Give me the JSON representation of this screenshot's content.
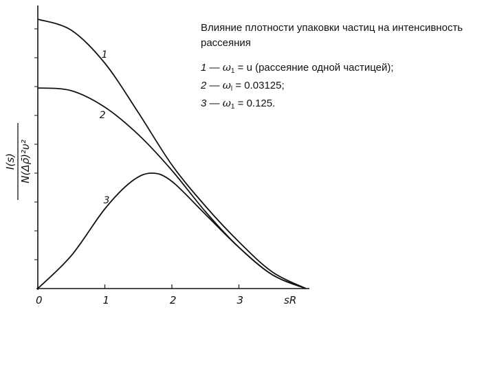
{
  "caption": {
    "title": "Влияние плотности упаковки частиц на интенсивность рассеяния"
  },
  "legend": [
    {
      "num": "1 —",
      "symbol": "ω",
      "sub": "1",
      "text": " = u (рассеяние  одной  частицей);"
    },
    {
      "num": "2 —",
      "symbol": "ω",
      "sub": "l",
      "text": " = 0.03125;"
    },
    {
      "num": "3 —",
      "symbol": "ω",
      "sub": "1",
      "text": " = 0.125."
    }
  ],
  "chart_data": {
    "type": "line",
    "xlabel": "sR",
    "ylabel": "I(s) / N(Δρ̄)²υ²",
    "xlim": [
      0,
      4
    ],
    "ylim": [
      0,
      1
    ],
    "x_ticks": [
      0,
      1,
      2,
      3
    ],
    "x_tick_labels": [
      "0",
      "1",
      "2",
      "3"
    ],
    "grid": false,
    "series": [
      {
        "name": "1",
        "x": [
          0,
          0.5,
          1.0,
          1.5,
          2.0,
          2.5,
          3.0,
          3.5,
          4.0
        ],
        "y": [
          0.98,
          0.94,
          0.82,
          0.64,
          0.45,
          0.3,
          0.17,
          0.06,
          0.0
        ]
      },
      {
        "name": "2",
        "x": [
          0,
          0.5,
          1.0,
          1.5,
          2.0,
          2.5,
          3.0,
          3.5,
          4.0
        ],
        "y": [
          0.73,
          0.72,
          0.66,
          0.56,
          0.43,
          0.28,
          0.15,
          0.05,
          0.0
        ]
      },
      {
        "name": "3",
        "x": [
          0,
          0.5,
          1.0,
          1.4,
          1.7,
          2.0,
          2.5,
          3.0,
          3.5,
          4.0
        ],
        "y": [
          0.0,
          0.12,
          0.29,
          0.39,
          0.42,
          0.39,
          0.27,
          0.15,
          0.05,
          0.0
        ]
      }
    ]
  }
}
